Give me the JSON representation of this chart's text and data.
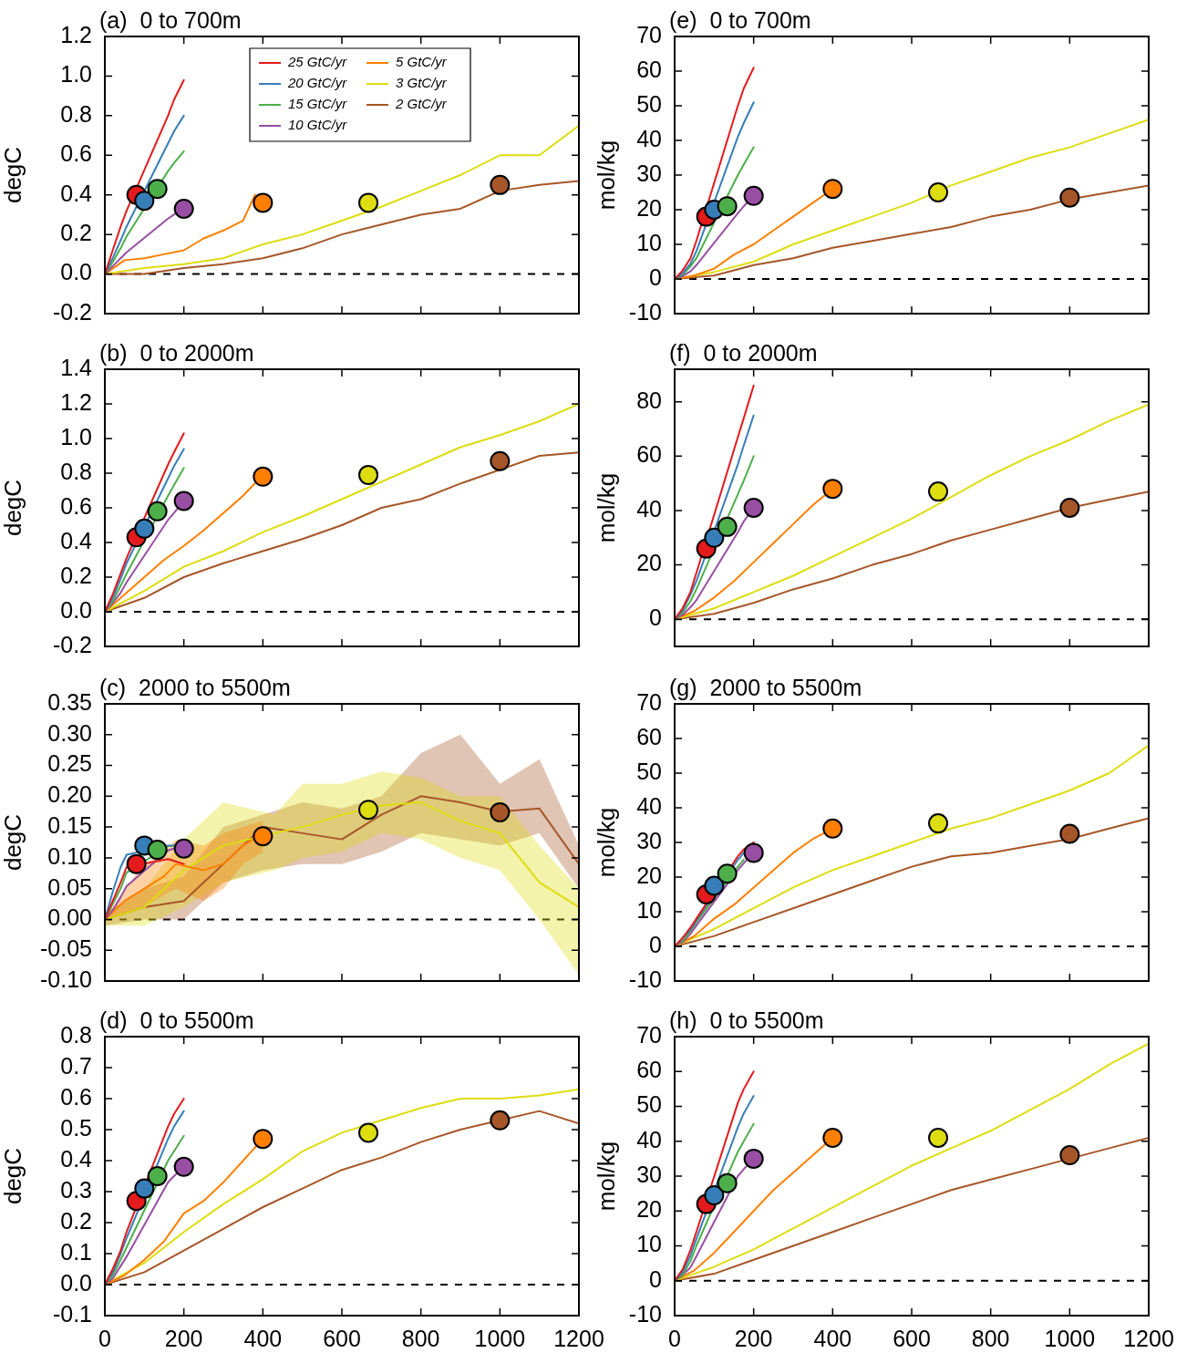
{
  "chart_data": [
    {
      "type": "line",
      "title": "(a)  0 to 700m",
      "ylabel": "degC",
      "xlim": [
        0,
        1200
      ],
      "xticks": [
        0,
        200,
        400,
        600,
        800,
        1000,
        1200
      ],
      "ylim": [
        -0.2,
        1.2
      ],
      "yticks": [
        -0.2,
        {
          "value": 0,
          "label": "0.0"
        },
        0.2,
        0.4,
        0.6,
        0.8,
        {
          "value": 1,
          "label": "1.0"
        },
        1.2
      ],
      "tick_labels": "y",
      "legend": "top",
      "ref_lines": [
        {
          "axis": "y",
          "value": 0,
          "line_style": "dashed",
          "color": "#000000"
        }
      ],
      "series": [
        {
          "type": "line",
          "name": "25 GtC/yr",
          "color": "#e41a1c",
          "x": [
            0,
            20,
            40,
            55,
            160,
            175,
            200
          ],
          "values": [
            0,
            0.12,
            0.24,
            0.32,
            0.8,
            0.88,
            0.98
          ]
        },
        {
          "type": "line",
          "name": "20 GtC/yr",
          "color": "#377eb8",
          "x": [
            0,
            20,
            40,
            55,
            160,
            175,
            200
          ],
          "values": [
            0,
            0.08,
            0.17,
            0.24,
            0.66,
            0.72,
            0.8
          ]
        },
        {
          "type": "line",
          "name": "15 GtC/yr",
          "color": "#4daf4a",
          "x": [
            0,
            20,
            40,
            55,
            160,
            175,
            200
          ],
          "values": [
            0,
            0.06,
            0.13,
            0.19,
            0.52,
            0.56,
            0.62
          ]
        },
        {
          "type": "line",
          "name": "10 GtC/yr",
          "color": "#984ea3",
          "x": [
            0,
            20,
            40,
            55,
            160,
            175,
            200
          ],
          "values": [
            0,
            0.04,
            0.08,
            0.11,
            0.28,
            0.3,
            0.34
          ]
        },
        {
          "type": "line",
          "name": "5 GtC/yr",
          "color": "#ff7f00",
          "x": [
            0,
            50,
            100,
            150,
            200,
            250,
            300,
            350,
            380
          ],
          "values": [
            0,
            0.07,
            0.08,
            0.1,
            0.12,
            0.18,
            0.22,
            0.27,
            0.4
          ]
        },
        {
          "type": "line",
          "name": "3 GtC/yr",
          "color": "#dddd10",
          "x": [
            0,
            100,
            200,
            300,
            400,
            500,
            600,
            700,
            800,
            900,
            1000,
            1100,
            1200
          ],
          "values": [
            0,
            0.03,
            0.05,
            0.08,
            0.15,
            0.2,
            0.27,
            0.34,
            0.42,
            0.5,
            0.6,
            0.6,
            0.75
          ]
        },
        {
          "type": "line",
          "name": "2 GtC/yr",
          "color": "#a65628",
          "x": [
            0,
            100,
            200,
            300,
            400,
            500,
            600,
            700,
            800,
            900,
            1000,
            1100,
            1200
          ],
          "values": [
            0,
            0,
            0.03,
            0.05,
            0.08,
            0.13,
            0.2,
            0.25,
            0.3,
            0.33,
            0.42,
            0.45,
            0.47
          ]
        },
        {
          "type": "scatter",
          "marker": "circle",
          "colors": [
            "#e41a1c",
            "#377eb8",
            "#4daf4a",
            "#984ea3",
            "#ff7f00",
            "#dddd10",
            "#a65628"
          ],
          "x": [
            80,
            100,
            133,
            200,
            400,
            667,
            1000
          ],
          "values": [
            0.4,
            0.37,
            0.43,
            0.33,
            0.36,
            0.36,
            0.45
          ]
        }
      ]
    },
    {
      "type": "line",
      "title": "(b)  0 to 2000m",
      "ylabel": "degC",
      "xlim": [
        0,
        1200
      ],
      "xticks": [
        0,
        200,
        400,
        600,
        800,
        1000,
        1200
      ],
      "ylim": [
        -0.2,
        1.4
      ],
      "yticks": [
        -0.2,
        {
          "value": 0,
          "label": "0.0"
        },
        0.2,
        0.4,
        0.6,
        0.8,
        {
          "value": 1,
          "label": "1.0"
        },
        1.2,
        1.4
      ],
      "tick_labels": "y",
      "ref_lines": [
        {
          "axis": "y",
          "value": 0,
          "line_style": "dashed",
          "color": "#000000"
        }
      ],
      "series": [
        {
          "type": "line",
          "color": "#e41a1c",
          "x": [
            0,
            20,
            40,
            55,
            160,
            175,
            200
          ],
          "values": [
            0,
            0.1,
            0.22,
            0.31,
            0.85,
            0.92,
            1.03
          ]
        },
        {
          "type": "line",
          "color": "#377eb8",
          "x": [
            0,
            20,
            40,
            55,
            160,
            175,
            200
          ],
          "values": [
            0,
            0.08,
            0.19,
            0.28,
            0.77,
            0.84,
            0.94
          ]
        },
        {
          "type": "line",
          "color": "#4daf4a",
          "x": [
            0,
            20,
            40,
            55,
            160,
            175,
            200
          ],
          "values": [
            0,
            0.06,
            0.15,
            0.22,
            0.67,
            0.73,
            0.83
          ]
        },
        {
          "type": "line",
          "color": "#984ea3",
          "x": [
            0,
            20,
            40,
            55,
            160,
            175,
            200
          ],
          "values": [
            0,
            0.05,
            0.11,
            0.17,
            0.53,
            0.57,
            0.64
          ]
        },
        {
          "type": "line",
          "color": "#ff7f00",
          "x": [
            0,
            50,
            100,
            150,
            200,
            250,
            300,
            350,
            400
          ],
          "values": [
            0,
            0.1,
            0.2,
            0.3,
            0.38,
            0.47,
            0.57,
            0.67,
            0.79
          ]
        },
        {
          "type": "line",
          "color": "#dddd10",
          "x": [
            0,
            100,
            200,
            300,
            400,
            500,
            600,
            700,
            800,
            900,
            1000,
            1100,
            1200
          ],
          "values": [
            0,
            0.12,
            0.26,
            0.35,
            0.46,
            0.55,
            0.65,
            0.75,
            0.85,
            0.95,
            1.02,
            1.1,
            1.2
          ]
        },
        {
          "type": "line",
          "color": "#a65628",
          "x": [
            0,
            100,
            200,
            300,
            400,
            500,
            600,
            700,
            800,
            900,
            1000,
            1100,
            1200
          ],
          "values": [
            0,
            0.08,
            0.2,
            0.28,
            0.35,
            0.42,
            0.5,
            0.6,
            0.65,
            0.74,
            0.82,
            0.9,
            0.92
          ]
        },
        {
          "type": "scatter",
          "marker": "circle",
          "colors": [
            "#e41a1c",
            "#377eb8",
            "#4daf4a",
            "#984ea3",
            "#ff7f00",
            "#dddd10",
            "#a65628"
          ],
          "x": [
            80,
            100,
            133,
            200,
            400,
            667,
            1000
          ],
          "values": [
            0.43,
            0.48,
            0.58,
            0.64,
            0.78,
            0.79,
            0.87
          ]
        }
      ]
    },
    {
      "type": "line",
      "title": "(c)  2000 to 5500m",
      "ylabel": "degC",
      "xlim": [
        0,
        1200
      ],
      "xticks": [
        0,
        200,
        400,
        600,
        800,
        1000,
        1200
      ],
      "ylim": [
        -0.1,
        0.35
      ],
      "yticks": [
        {
          "value": -0.1,
          "label": "-0.10"
        },
        -0.05,
        {
          "value": 0,
          "label": "0.00"
        },
        0.05,
        {
          "value": 0.1,
          "label": "0.10"
        },
        0.15,
        {
          "value": 0.2,
          "label": "0.20"
        },
        0.25,
        {
          "value": 0.3,
          "label": "0.30"
        },
        0.35
      ],
      "tick_labels": "y",
      "ref_lines": [
        {
          "axis": "y",
          "value": 0,
          "line_style": "dashed",
          "color": "#000000"
        }
      ],
      "series": [
        {
          "type": "line",
          "color": "#e41a1c",
          "x": [
            0,
            20,
            40,
            55,
            160,
            175,
            200
          ],
          "values": [
            0,
            0.03,
            0.06,
            0.085,
            0.098,
            0.095,
            0.09
          ]
        },
        {
          "type": "line",
          "color": "#377eb8",
          "x": [
            0,
            20,
            40,
            55,
            160,
            175
          ],
          "values": [
            0,
            0.045,
            0.085,
            0.105,
            0.12,
            0.12
          ]
        },
        {
          "type": "line",
          "color": "#4daf4a",
          "x": [
            0,
            20,
            40,
            55,
            160,
            175
          ],
          "values": [
            0,
            0.025,
            0.05,
            0.076,
            0.119,
            0.12
          ]
        },
        {
          "type": "line",
          "color": "#984ea3",
          "x": [
            0,
            20,
            40,
            55,
            160,
            175,
            200
          ],
          "values": [
            0,
            0.015,
            0.036,
            0.054,
            0.112,
            0.115,
            0.117
          ]
        },
        {
          "type": "line",
          "color": "#ff7f00",
          "x": [
            0,
            50,
            100,
            150,
            180,
            250,
            300,
            350,
            400
          ],
          "values": [
            0,
            0.03,
            0.05,
            0.07,
            0.09,
            0.08,
            0.09,
            0.12,
            0.14
          ],
          "lower": [
            0,
            0.01,
            0.02,
            0.04,
            0.05,
            0.03,
            0.05,
            0.09,
            0.11
          ],
          "upper": [
            0,
            0.05,
            0.09,
            0.11,
            0.13,
            0.12,
            0.14,
            0.15,
            0.16
          ]
        },
        {
          "type": "line",
          "color": "#dddd10",
          "x": [
            0,
            100,
            200,
            300,
            430,
            500,
            600,
            700,
            800,
            900,
            1000,
            1100,
            1200
          ],
          "values": [
            0,
            0.02,
            0.08,
            0.12,
            0.14,
            0.15,
            0.17,
            0.185,
            0.19,
            0.16,
            0.14,
            0.06,
            0.02
          ],
          "lower": [
            -0.01,
            -0.01,
            0.02,
            0.06,
            0.08,
            0.1,
            0.11,
            0.14,
            0.13,
            0.1,
            0.08,
            0,
            -0.09
          ],
          "upper": [
            0.01,
            0.05,
            0.13,
            0.19,
            0.17,
            0.22,
            0.22,
            0.24,
            0.23,
            0.2,
            0.2,
            0.12,
            0.05
          ]
        },
        {
          "type": "line",
          "color": "#a65628",
          "x": [
            0,
            100,
            200,
            300,
            400,
            500,
            600,
            700,
            800,
            900,
            1000,
            1100,
            1200
          ],
          "values": [
            0,
            0.02,
            0.03,
            0.09,
            0.15,
            0.14,
            0.13,
            0.17,
            0.2,
            0.19,
            0.175,
            0.18,
            0.09
          ],
          "lower": [
            -0.01,
            0,
            0,
            0.06,
            0.08,
            0.09,
            0.09,
            0.11,
            0.14,
            0.13,
            0.12,
            0.14,
            0.05
          ],
          "upper": [
            0.01,
            0.05,
            0.07,
            0.15,
            0.17,
            0.19,
            0.18,
            0.2,
            0.27,
            0.3,
            0.22,
            0.26,
            0.12
          ]
        },
        {
          "type": "scatter",
          "marker": "circle",
          "colors": [
            "#e41a1c",
            "#377eb8",
            "#4daf4a",
            "#984ea3",
            "#ff7f00",
            "#dddd10",
            "#a65628"
          ],
          "x": [
            80,
            100,
            133,
            200,
            400,
            667,
            1000
          ],
          "values": [
            0.09,
            0.12,
            0.113,
            0.115,
            0.135,
            0.178,
            0.174
          ]
        }
      ]
    },
    {
      "type": "line",
      "title": "(d)  0 to 5500m",
      "ylabel": "degC",
      "xlim": [
        0,
        1200
      ],
      "xticks": [
        0,
        200,
        400,
        600,
        800,
        1000,
        1200
      ],
      "ylim": [
        -0.1,
        0.8
      ],
      "yticks": [
        -0.1,
        {
          "value": 0,
          "label": "0.0"
        },
        0.1,
        0.2,
        0.3,
        0.4,
        0.5,
        0.6,
        0.7,
        0.8
      ],
      "ref_lines": [
        {
          "axis": "y",
          "value": 0,
          "line_style": "dashed",
          "color": "#000000"
        }
      ],
      "series": [
        {
          "type": "line",
          "color": "#e41a1c",
          "x": [
            0,
            20,
            40,
            55,
            160,
            175,
            200
          ],
          "values": [
            0,
            0.05,
            0.11,
            0.17,
            0.51,
            0.55,
            0.6
          ]
        },
        {
          "type": "line",
          "color": "#377eb8",
          "x": [
            0,
            20,
            40,
            55,
            160,
            175,
            200
          ],
          "values": [
            0,
            0.04,
            0.1,
            0.15,
            0.47,
            0.51,
            0.56
          ]
        },
        {
          "type": "line",
          "color": "#4daf4a",
          "x": [
            0,
            20,
            40,
            55,
            160,
            175,
            200
          ],
          "values": [
            0,
            0.03,
            0.08,
            0.12,
            0.4,
            0.43,
            0.48
          ]
        },
        {
          "type": "line",
          "color": "#984ea3",
          "x": [
            0,
            20,
            40,
            55,
            160,
            175,
            200
          ],
          "values": [
            0,
            0.02,
            0.06,
            0.09,
            0.33,
            0.35,
            0.38
          ]
        },
        {
          "type": "line",
          "color": "#ff7f00",
          "x": [
            0,
            50,
            100,
            150,
            200,
            250,
            300,
            350,
            400
          ],
          "values": [
            0,
            0.03,
            0.08,
            0.14,
            0.23,
            0.27,
            0.33,
            0.4,
            0.47
          ]
        },
        {
          "type": "line",
          "color": "#dddd10",
          "x": [
            0,
            100,
            200,
            300,
            400,
            500,
            600,
            700,
            800,
            900,
            1000,
            1100,
            1200
          ],
          "values": [
            0,
            0.07,
            0.17,
            0.26,
            0.34,
            0.43,
            0.49,
            0.53,
            0.57,
            0.6,
            0.6,
            0.61,
            0.63
          ]
        },
        {
          "type": "line",
          "color": "#a65628",
          "x": [
            0,
            100,
            200,
            300,
            400,
            500,
            600,
            700,
            800,
            900,
            1000,
            1100,
            1200
          ],
          "values": [
            0,
            0.04,
            0.11,
            0.18,
            0.25,
            0.31,
            0.37,
            0.41,
            0.46,
            0.5,
            0.53,
            0.56,
            0.52
          ]
        },
        {
          "type": "scatter",
          "marker": "circle",
          "colors": [
            "#e41a1c",
            "#377eb8",
            "#4daf4a",
            "#984ea3",
            "#ff7f00",
            "#dddd10",
            "#a65628"
          ],
          "x": [
            80,
            100,
            133,
            200,
            400,
            667,
            1000
          ],
          "values": [
            0.27,
            0.31,
            0.35,
            0.38,
            0.47,
            0.49,
            0.53
          ]
        }
      ]
    },
    {
      "type": "line",
      "title": "(e)  0 to 700m",
      "ylabel": "mol/kg",
      "xlim": [
        0,
        1200
      ],
      "xticks": [
        0,
        200,
        400,
        600,
        800,
        1000,
        1200
      ],
      "ylim": [
        -10,
        70
      ],
      "yticks": [
        -10,
        0,
        10,
        20,
        30,
        40,
        50,
        60,
        70
      ],
      "tick_labels": "y",
      "ref_lines": [
        {
          "axis": "y",
          "value": 0,
          "line_style": "dashed",
          "color": "#000000"
        }
      ],
      "series": [
        {
          "type": "line",
          "color": "#e41a1c",
          "x": [
            0,
            20,
            40,
            55,
            160,
            175,
            200
          ],
          "values": [
            0,
            2.4,
            6,
            11,
            50,
            55,
            61
          ]
        },
        {
          "type": "line",
          "color": "#377eb8",
          "x": [
            0,
            20,
            40,
            55,
            160,
            175,
            200
          ],
          "values": [
            0,
            1.6,
            4.4,
            8,
            41,
            45,
            51
          ]
        },
        {
          "type": "line",
          "color": "#4daf4a",
          "x": [
            0,
            20,
            40,
            55,
            160,
            175,
            200
          ],
          "values": [
            0,
            1.2,
            3.6,
            6,
            30,
            33,
            38
          ]
        },
        {
          "type": "line",
          "color": "#984ea3",
          "x": [
            0,
            20,
            40,
            55,
            160,
            175,
            200
          ],
          "values": [
            0,
            0.8,
            2.2,
            4,
            19,
            21,
            24
          ]
        },
        {
          "type": "line",
          "color": "#ff7f00",
          "x": [
            0,
            50,
            100,
            150,
            200,
            250,
            300,
            350,
            400
          ],
          "values": [
            0,
            1,
            3,
            7,
            10,
            14,
            18,
            22,
            26
          ]
        },
        {
          "type": "line",
          "color": "#dddd10",
          "x": [
            0,
            100,
            200,
            300,
            400,
            500,
            600,
            700,
            800,
            900,
            1000,
            1100,
            1200
          ],
          "values": [
            0,
            2,
            5,
            10,
            14,
            18,
            22,
            27,
            31,
            35,
            38,
            42,
            46
          ]
        },
        {
          "type": "line",
          "color": "#a65628",
          "x": [
            0,
            100,
            200,
            300,
            400,
            500,
            600,
            700,
            800,
            900,
            1000,
            1100,
            1200
          ],
          "values": [
            0,
            1,
            4,
            6,
            9,
            11,
            13,
            15,
            18,
            20,
            23,
            25,
            27
          ]
        },
        {
          "type": "scatter",
          "marker": "circle",
          "colors": [
            "#e41a1c",
            "#377eb8",
            "#4daf4a",
            "#984ea3",
            "#ff7f00",
            "#dddd10",
            "#a65628"
          ],
          "x": [
            80,
            100,
            133,
            200,
            400,
            667,
            1000
          ],
          "values": [
            18,
            20,
            21,
            24,
            26,
            25,
            23.5
          ]
        }
      ]
    },
    {
      "type": "line",
      "title": "(f)  0 to 2000m",
      "ylabel": "mol/kg",
      "xlim": [
        0,
        1200
      ],
      "xticks": [
        0,
        200,
        400,
        600,
        800,
        1000,
        1200
      ],
      "ylim": [
        -10,
        92
      ],
      "yticks": [
        0,
        20,
        40,
        60,
        80
      ],
      "tick_labels": "y",
      "ref_lines": [
        {
          "axis": "y",
          "value": 0,
          "line_style": "dashed",
          "color": "#000000"
        }
      ],
      "series": [
        {
          "type": "line",
          "color": "#e41a1c",
          "x": [
            0,
            20,
            40,
            55,
            160,
            175,
            200
          ],
          "values": [
            0,
            4,
            10,
            17,
            67,
            74,
            86
          ]
        },
        {
          "type": "line",
          "color": "#377eb8",
          "x": [
            0,
            20,
            40,
            55,
            160,
            175,
            200
          ],
          "values": [
            0,
            3.2,
            9,
            14,
            57,
            64,
            75
          ]
        },
        {
          "type": "line",
          "color": "#4daf4a",
          "x": [
            0,
            20,
            40,
            55,
            160,
            175,
            200
          ],
          "values": [
            0,
            2.4,
            6.6,
            11,
            46,
            51,
            60
          ]
        },
        {
          "type": "line",
          "color": "#984ea3",
          "x": [
            0,
            20,
            40,
            55,
            160,
            175,
            200
          ],
          "values": [
            0,
            1.6,
            4.4,
            7,
            32,
            36,
            41
          ]
        },
        {
          "type": "line",
          "color": "#ff7f00",
          "x": [
            0,
            50,
            100,
            150,
            200,
            250,
            300,
            350,
            400
          ],
          "values": [
            0,
            3,
            8,
            14,
            21,
            28,
            35,
            42,
            48
          ]
        },
        {
          "type": "line",
          "color": "#dddd10",
          "x": [
            0,
            100,
            200,
            300,
            400,
            500,
            600,
            700,
            800,
            900,
            1000,
            1100,
            1200
          ],
          "values": [
            0,
            4,
            10,
            16,
            23,
            30,
            37,
            45,
            53,
            60,
            66,
            73,
            79
          ]
        },
        {
          "type": "line",
          "color": "#a65628",
          "x": [
            0,
            100,
            200,
            300,
            400,
            500,
            600,
            700,
            800,
            900,
            1000,
            1100,
            1200
          ],
          "values": [
            0,
            2,
            6,
            11,
            15,
            20,
            24,
            29,
            33,
            37,
            41,
            44,
            47
          ]
        },
        {
          "type": "scatter",
          "marker": "circle",
          "colors": [
            "#e41a1c",
            "#377eb8",
            "#4daf4a",
            "#984ea3",
            "#ff7f00",
            "#dddd10",
            "#a65628"
          ],
          "x": [
            80,
            100,
            133,
            200,
            400,
            667,
            1000
          ],
          "values": [
            26,
            30,
            34,
            41,
            48,
            47,
            41
          ]
        }
      ]
    },
    {
      "type": "line",
      "title": "(g)  2000 to 5500m",
      "ylabel": "mol/kg",
      "xlim": [
        0,
        1200
      ],
      "xticks": [
        0,
        200,
        400,
        600,
        800,
        1000,
        1200
      ],
      "ylim": [
        -10,
        70
      ],
      "yticks": [
        -10,
        0,
        10,
        20,
        30,
        40,
        50,
        60,
        70
      ],
      "tick_labels": "y",
      "ref_lines": [
        {
          "axis": "y",
          "value": 0,
          "line_style": "dashed",
          "color": "#000000"
        }
      ],
      "series": [
        {
          "type": "line",
          "color": "#e41a1c",
          "x": [
            0,
            20,
            40,
            55,
            160,
            175,
            200
          ],
          "values": [
            0,
            2.4,
            5.4,
            8,
            26,
            28,
            30
          ]
        },
        {
          "type": "line",
          "color": "#377eb8",
          "x": [
            0,
            20,
            40,
            55,
            160,
            175,
            200
          ],
          "values": [
            0,
            2.4,
            4.8,
            7.5,
            25,
            27,
            30
          ]
        },
        {
          "type": "line",
          "color": "#4daf4a",
          "x": [
            0,
            20,
            40,
            55,
            160,
            175
          ],
          "values": [
            0,
            1.6,
            4.4,
            7,
            23,
            25
          ]
        },
        {
          "type": "line",
          "color": "#984ea3",
          "x": [
            0,
            20,
            40,
            55,
            160,
            175,
            200
          ],
          "values": [
            0,
            1.2,
            3.6,
            6,
            22,
            24,
            27
          ]
        },
        {
          "type": "line",
          "color": "#ff7f00",
          "x": [
            0,
            50,
            100,
            150,
            200,
            250,
            300,
            350,
            400
          ],
          "values": [
            0,
            3,
            8,
            12,
            17,
            22,
            27,
            31,
            34
          ]
        },
        {
          "type": "line",
          "color": "#dddd10",
          "x": [
            0,
            100,
            200,
            300,
            400,
            500,
            600,
            700,
            800,
            900,
            1000,
            1100,
            1200
          ],
          "values": [
            0,
            5,
            11,
            17,
            22,
            26,
            30,
            34,
            37,
            41,
            45,
            50,
            58
          ]
        },
        {
          "type": "line",
          "color": "#a65628",
          "x": [
            0,
            100,
            200,
            300,
            400,
            500,
            600,
            700,
            800,
            900,
            1000,
            1100,
            1200
          ],
          "values": [
            0,
            3,
            7,
            11,
            15,
            19,
            23,
            26,
            27,
            29,
            31,
            34,
            37
          ]
        },
        {
          "type": "scatter",
          "marker": "circle",
          "colors": [
            "#e41a1c",
            "#377eb8",
            "#4daf4a",
            "#984ea3",
            "#ff7f00",
            "#dddd10",
            "#a65628"
          ],
          "x": [
            80,
            100,
            133,
            200,
            400,
            667,
            1000
          ],
          "values": [
            15,
            17.5,
            21,
            27,
            34,
            35.5,
            32.5
          ]
        }
      ]
    },
    {
      "type": "line",
      "title": "(h)  0 to 5500m",
      "ylabel": "mol/kg",
      "xlim": [
        0,
        1200
      ],
      "xticks": [
        0,
        200,
        400,
        600,
        800,
        1000,
        1200
      ],
      "ylim": [
        -10,
        70
      ],
      "yticks": [
        -10,
        0,
        10,
        20,
        30,
        40,
        50,
        60,
        70
      ],
      "ref_lines": [
        {
          "axis": "y",
          "value": 0,
          "line_style": "dashed",
          "color": "#000000"
        }
      ],
      "series": [
        {
          "type": "line",
          "color": "#e41a1c",
          "x": [
            0,
            20,
            40,
            55,
            160,
            175,
            200
          ],
          "values": [
            0,
            3.2,
            8.8,
            14,
            51,
            55,
            60
          ]
        },
        {
          "type": "line",
          "color": "#377eb8",
          "x": [
            0,
            20,
            40,
            55,
            160,
            175,
            200
          ],
          "values": [
            0,
            2.4,
            7.2,
            12,
            44,
            48,
            53
          ]
        },
        {
          "type": "line",
          "color": "#4daf4a",
          "x": [
            0,
            20,
            40,
            55,
            160,
            175,
            200
          ],
          "values": [
            0,
            1.6,
            5.6,
            10,
            37,
            40,
            45
          ]
        },
        {
          "type": "line",
          "color": "#984ea3",
          "x": [
            0,
            20,
            40,
            55,
            160,
            175,
            200
          ],
          "values": [
            0,
            1.6,
            3.8,
            7,
            30,
            32,
            35
          ]
        },
        {
          "type": "line",
          "color": "#ff7f00",
          "x": [
            0,
            50,
            100,
            150,
            200,
            250,
            300,
            350,
            400
          ],
          "values": [
            0,
            3,
            8,
            14,
            20,
            26,
            31,
            36,
            41
          ]
        },
        {
          "type": "line",
          "color": "#dddd10",
          "x": [
            0,
            100,
            200,
            300,
            400,
            500,
            600,
            700,
            800,
            900,
            1000,
            1100,
            1200
          ],
          "values": [
            0,
            4,
            9,
            15,
            21,
            27,
            33,
            38,
            43,
            49,
            55,
            62,
            68
          ]
        },
        {
          "type": "line",
          "color": "#a65628",
          "x": [
            0,
            100,
            200,
            300,
            400,
            500,
            600,
            700,
            800,
            900,
            1000,
            1100,
            1200
          ],
          "values": [
            0,
            2,
            6,
            10,
            14,
            18,
            22,
            26,
            29,
            32,
            35,
            38,
            41
          ]
        },
        {
          "type": "scatter",
          "marker": "circle",
          "colors": [
            "#e41a1c",
            "#377eb8",
            "#4daf4a",
            "#984ea3",
            "#ff7f00",
            "#dddd10",
            "#a65628"
          ],
          "x": [
            80,
            100,
            133,
            200,
            400,
            667,
            1000
          ],
          "values": [
            22,
            24.5,
            28,
            35,
            41,
            41,
            36
          ]
        }
      ]
    }
  ]
}
